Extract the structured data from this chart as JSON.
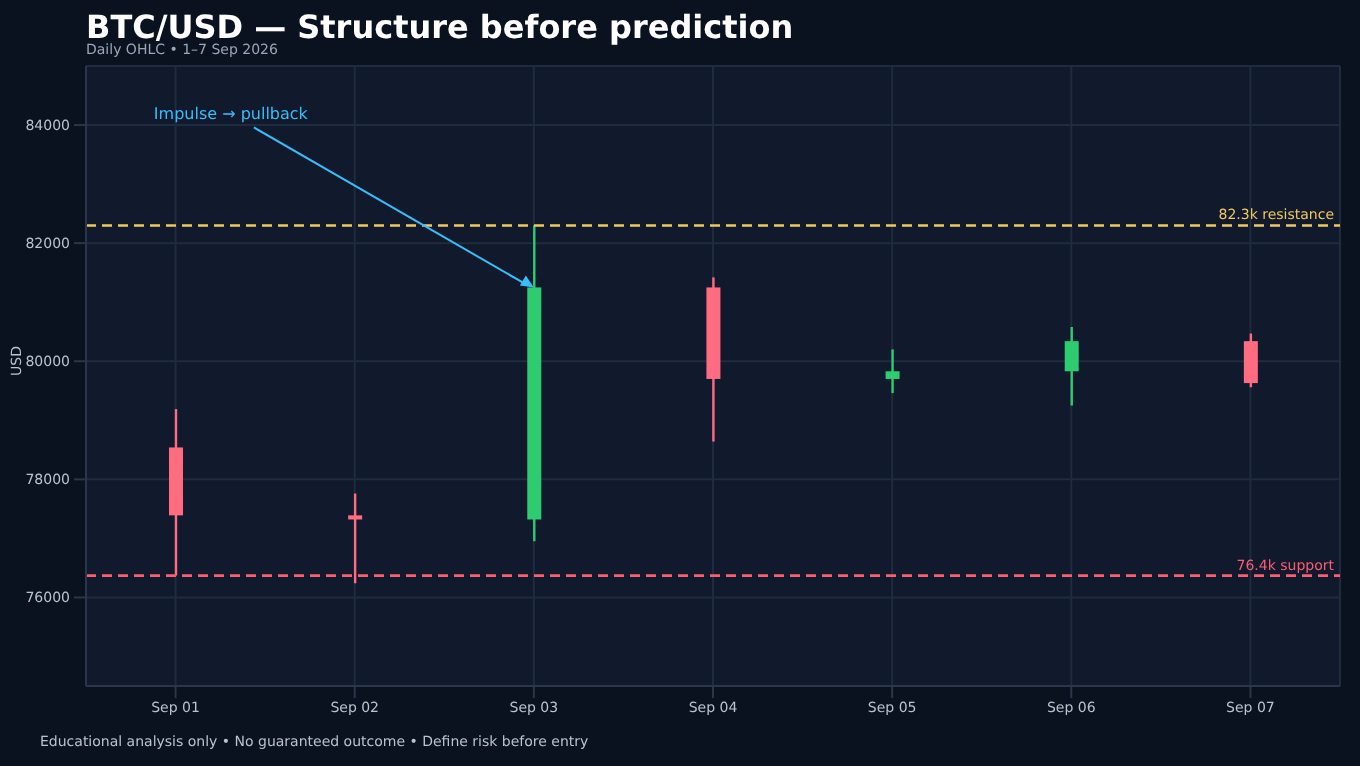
{
  "chart_data": {
    "type": "candlestick",
    "title": "BTC/USD — Structure before prediction",
    "subtitle": "Daily OHLC • 1–7 Sep 2026",
    "ylabel": "USD",
    "categories": [
      "Sep 01",
      "Sep 02",
      "Sep 03",
      "Sep 04",
      "Sep 05",
      "Sep 06",
      "Sep 07"
    ],
    "ohlc": [
      [
        78540,
        79190,
        76370,
        77390
      ],
      [
        77390,
        77760,
        76240,
        77320
      ],
      [
        77320,
        82300,
        76950,
        81250
      ],
      [
        81250,
        81420,
        78640,
        79700
      ],
      [
        79700,
        80200,
        79460,
        79830
      ],
      [
        79830,
        80580,
        79250,
        80340
      ],
      [
        80340,
        80470,
        79560,
        79630
      ]
    ],
    "colors": [
      "#ff6b81",
      "#ff6b81",
      "#2ecc71",
      "#ff6b81",
      "#2ecc71",
      "#2ecc71",
      "#ff6b81"
    ],
    "ylim": [
      74500,
      85000
    ],
    "yticks": [
      76000,
      78000,
      80000,
      82000,
      84000
    ],
    "grid": true,
    "ref_lines": [
      {
        "axis": "y",
        "value": 82300,
        "label": "82.3k resistance",
        "color": "#f2c75c",
        "line_style": "dashed"
      },
      {
        "axis": "y",
        "value": 76370,
        "label": "76.4k support",
        "color": "#ff5c72",
        "line_style": "dashed"
      }
    ],
    "annotations": [
      {
        "text": "Impulse → pullback",
        "x": "Sep 03",
        "y": 81250
      },
      "Educational analysis only • No guaranteed outcome • Define risk before entry"
    ]
  }
}
